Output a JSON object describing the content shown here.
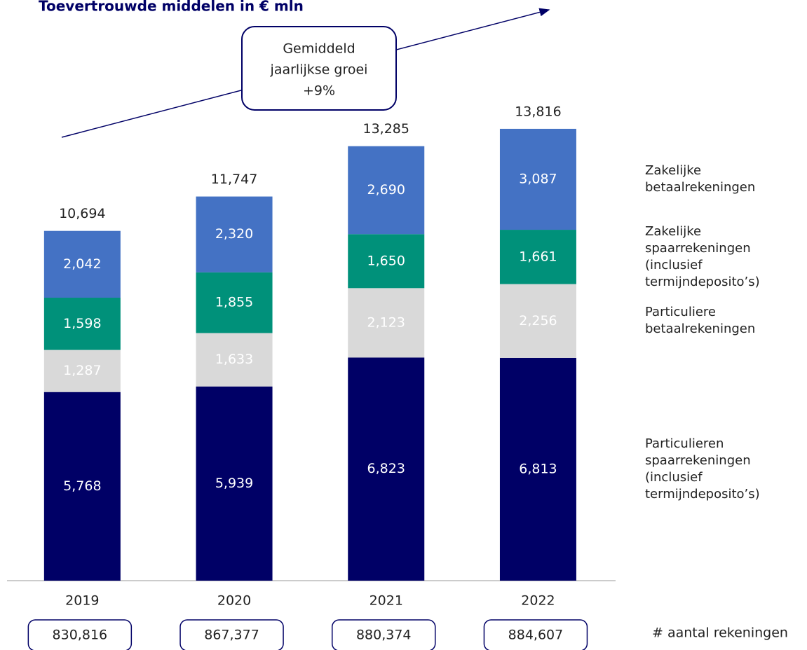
{
  "chart_data": {
    "type": "stacked_bar",
    "title": "Toevertrouwde middelen in  € mln",
    "annotation": [
      "Gemiddeld",
      "jaarlijkse groei",
      "+9%"
    ],
    "categories": [
      "2019",
      "2020",
      "2021",
      "2022"
    ],
    "series": [
      {
        "name": "Particulieren spaarrekeningen (inclusief termijndeposito’s)",
        "color": "#000066",
        "label_color": "#ffffff",
        "values": [
          5768,
          5939,
          6823,
          6813
        ],
        "value_labels": [
          "5,768",
          "5,939",
          "6,823",
          "6,813"
        ]
      },
      {
        "name": "Particuliere betaalrekeningen",
        "color": "#d9d9d9",
        "label_color": "#ffffff",
        "values": [
          1287,
          1633,
          2123,
          2256
        ],
        "value_labels": [
          "1,287",
          "1,633",
          "2,123",
          "2,256"
        ]
      },
      {
        "name": "Zakelijke spaarrekeningen (inclusief termijndeposito’s)",
        "color": "#00917a",
        "label_color": "#ffffff",
        "values": [
          1598,
          1855,
          1650,
          1661
        ],
        "value_labels": [
          "1,598",
          "1,855",
          "1,650",
          "1,661"
        ]
      },
      {
        "name": "Zakelijke betaalrekeningen",
        "color": "#4472c4",
        "label_color": "#ffffff",
        "values": [
          2042,
          2320,
          2690,
          3087
        ],
        "value_labels": [
          "2,042",
          "2,320",
          "2,690",
          "3,087"
        ]
      }
    ],
    "totals": [
      10694,
      11747,
      13285,
      13816
    ],
    "total_labels": [
      "10,694",
      "11,747",
      "13,285",
      "13,816"
    ],
    "accounts_label": "# aantal rekeningen",
    "accounts": [
      "830,816",
      "867,377",
      "880,374",
      "884,607"
    ],
    "ylim": [
      0,
      16000
    ]
  }
}
